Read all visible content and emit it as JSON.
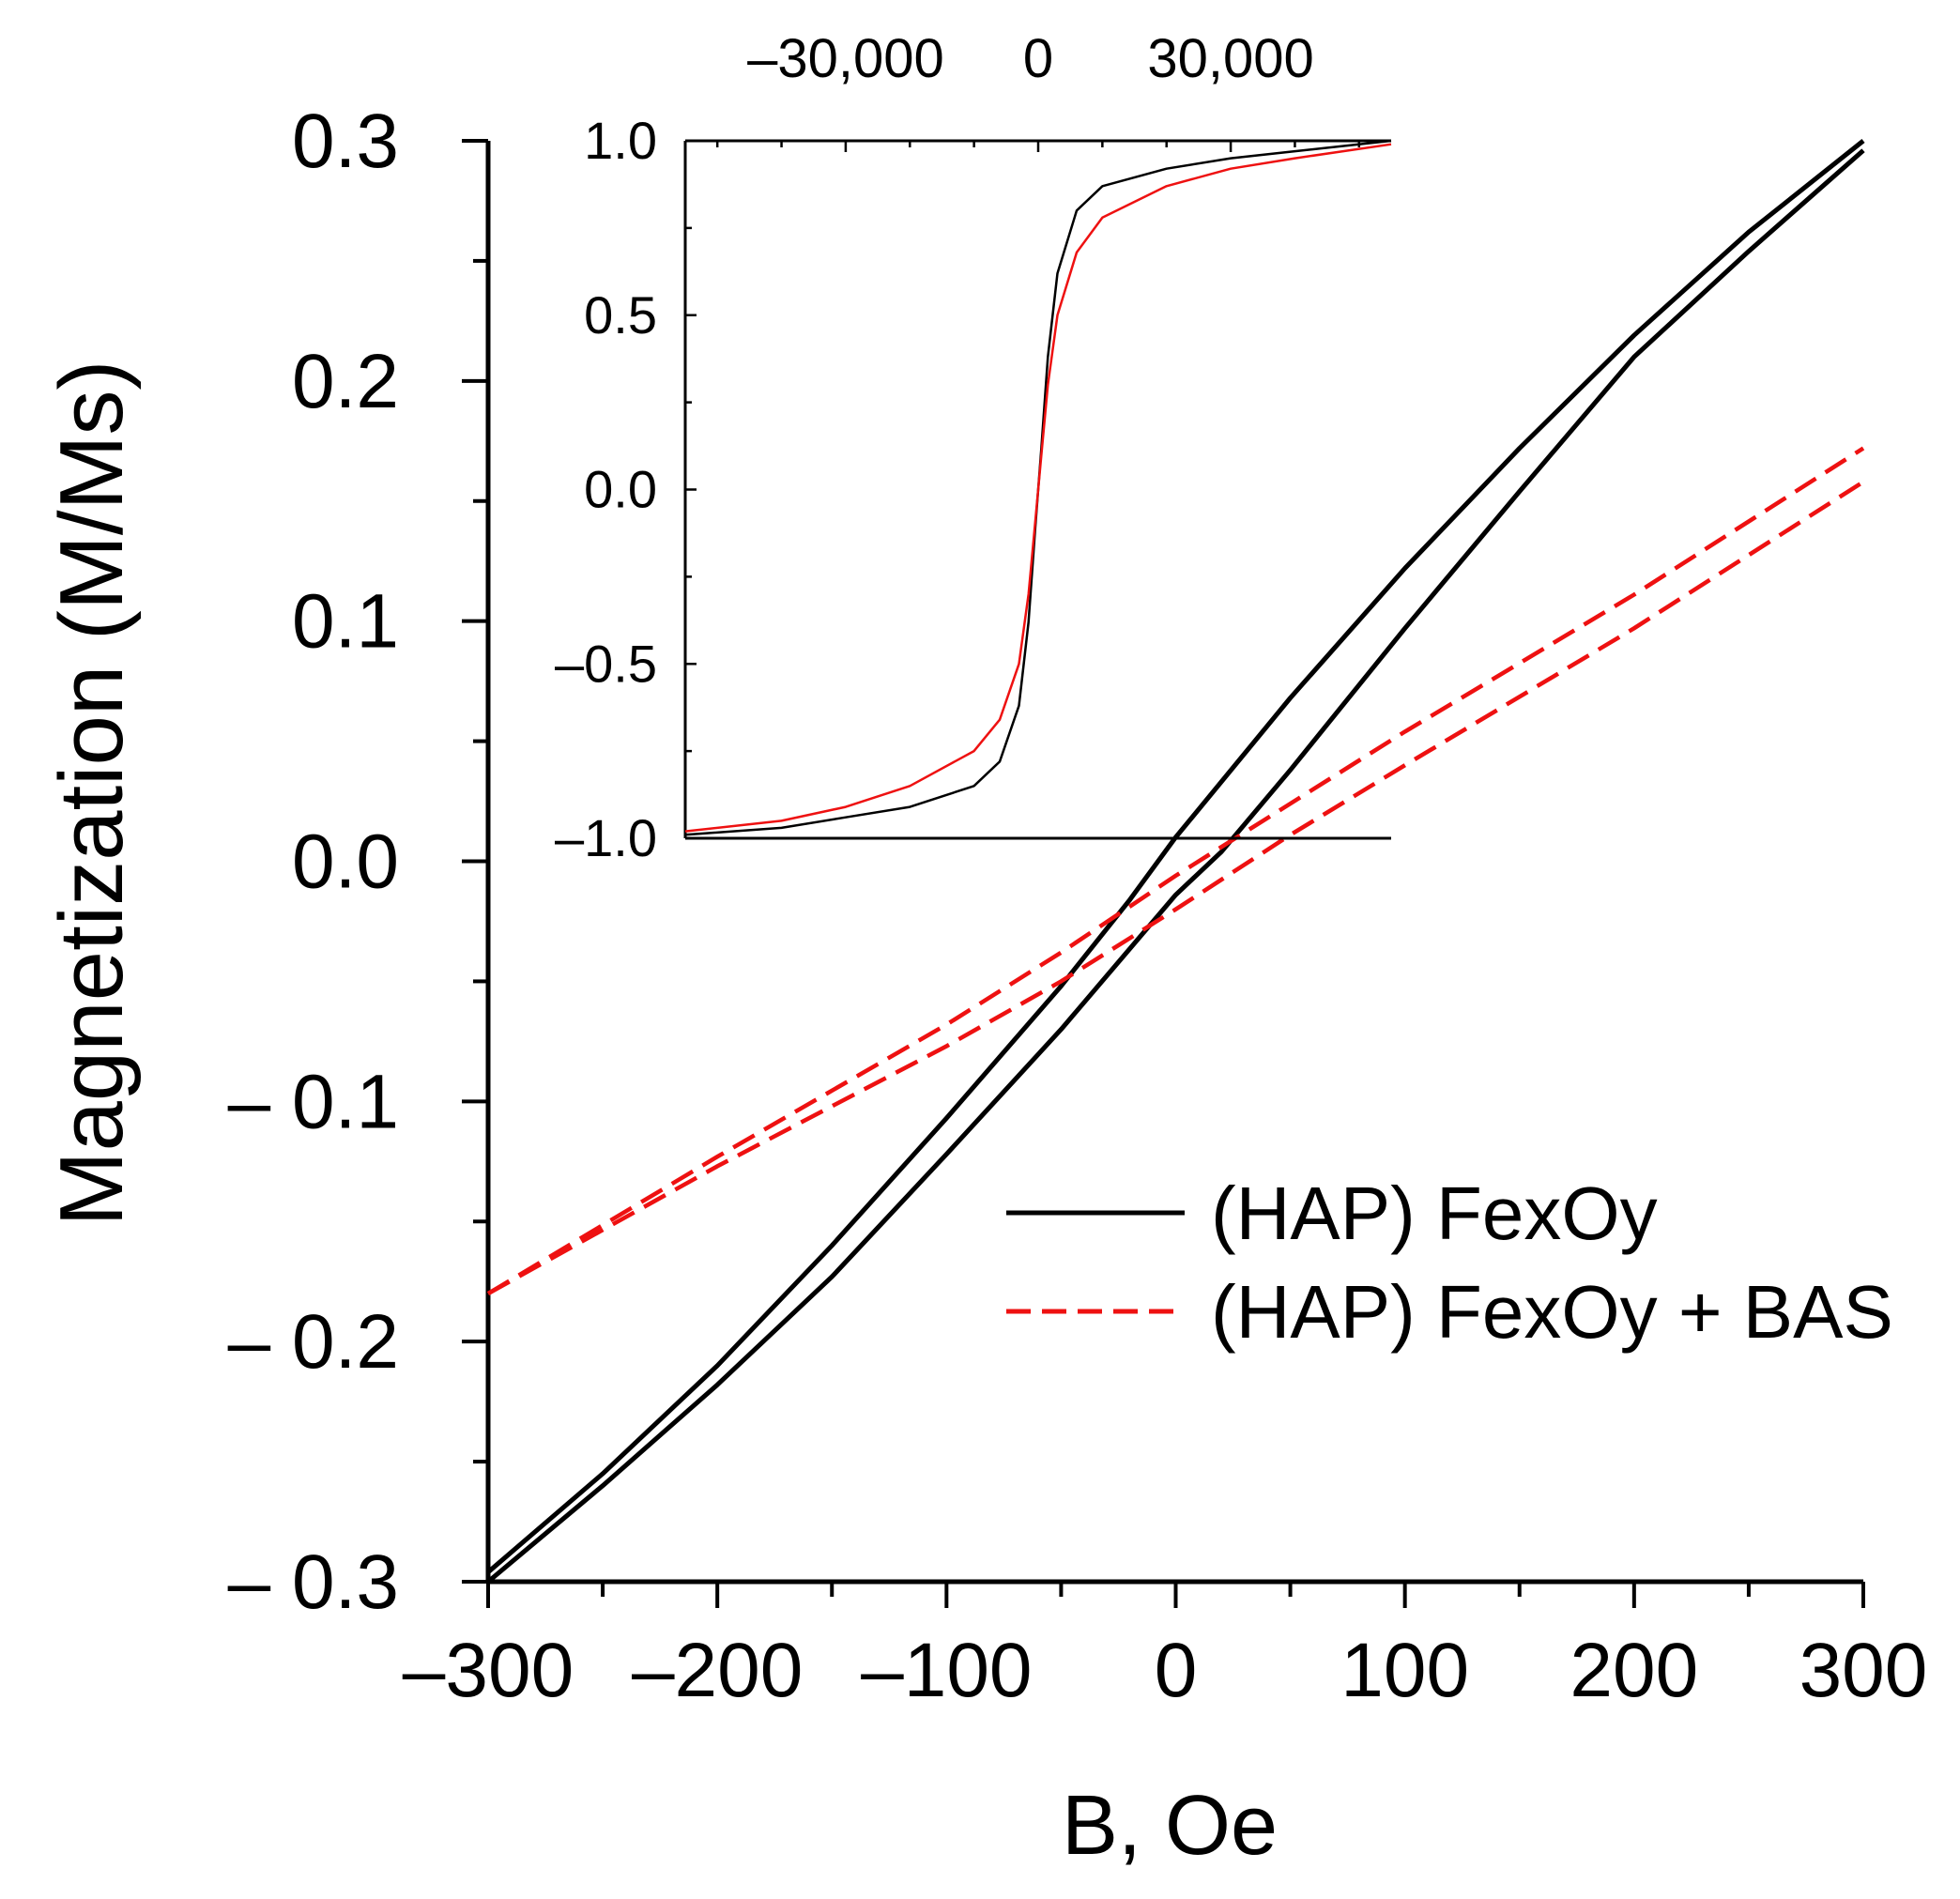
{
  "colors": {
    "axis": "#000000",
    "series_black": "#000000",
    "series_red": "#ee1111",
    "background": "#ffffff"
  },
  "chart_data": [
    {
      "id": "main",
      "type": "line",
      "title": "",
      "xlabel": "B, Oe",
      "ylabel": "Magnetization (M/Ms)",
      "xlim": [
        -300,
        300
      ],
      "ylim": [
        -0.3,
        0.3
      ],
      "xticks": [
        -300,
        -200,
        -100,
        0,
        100,
        200,
        300
      ],
      "xtick_labels": [
        "–300",
        "–200",
        "–100",
        "0",
        "100",
        "200",
        "300"
      ],
      "yticks": [
        -0.3,
        -0.2,
        -0.1,
        0.0,
        0.1,
        0.2,
        0.3
      ],
      "ytick_labels": [
        "– 0.3",
        "– 0.2",
        "– 0.1",
        "0.0",
        "0.1",
        "0.2",
        "0.3"
      ],
      "grid": false,
      "legend_position": "lower-right",
      "series": [
        {
          "name": "(HAP) FexOy",
          "branch": "descending",
          "style": "solid",
          "color": "#000000",
          "x": [
            -300,
            -250,
            -200,
            -150,
            -100,
            -50,
            -20,
            0,
            50,
            100,
            150,
            200,
            250,
            300
          ],
          "y": [
            -0.296,
            -0.255,
            -0.21,
            -0.16,
            -0.107,
            -0.052,
            -0.016,
            0.01,
            0.068,
            0.122,
            0.172,
            0.219,
            0.262,
            0.3
          ]
        },
        {
          "name": "(HAP) FexOy",
          "branch": "ascending",
          "style": "solid",
          "color": "#000000",
          "x": [
            -300,
            -250,
            -200,
            -150,
            -100,
            -50,
            0,
            20,
            50,
            100,
            150,
            200,
            250,
            300
          ],
          "y": [
            -0.3,
            -0.26,
            -0.218,
            -0.173,
            -0.122,
            -0.07,
            -0.014,
            0.004,
            0.038,
            0.097,
            0.154,
            0.21,
            0.254,
            0.296
          ]
        },
        {
          "name": "(HAP) FexOy + BAS",
          "branch": "descending",
          "style": "dashed",
          "color": "#ee1111",
          "x": [
            -300,
            -200,
            -100,
            -50,
            0,
            50,
            100,
            200,
            300
          ],
          "y": [
            -0.18,
            -0.123,
            -0.068,
            -0.038,
            -0.006,
            0.024,
            0.054,
            0.111,
            0.172
          ]
        },
        {
          "name": "(HAP) FexOy + BAS",
          "branch": "ascending",
          "style": "dashed",
          "color": "#ee1111",
          "x": [
            -300,
            -200,
            -100,
            -50,
            0,
            50,
            100,
            200,
            300
          ],
          "y": [
            -0.18,
            -0.127,
            -0.077,
            -0.05,
            -0.02,
            0.011,
            0.04,
            0.097,
            0.158
          ]
        }
      ],
      "legend": [
        {
          "label": "(HAP) FexOy",
          "style": "solid",
          "color": "#000000"
        },
        {
          "label": "(HAP) FexOy + BAS",
          "style": "dashed",
          "color": "#ee1111"
        }
      ]
    },
    {
      "id": "inset",
      "type": "line",
      "title": "",
      "xlabel": "",
      "ylabel": "",
      "xlim": [
        -55000,
        55000
      ],
      "ylim": [
        -1.0,
        1.0
      ],
      "xticks": [
        -30000,
        0,
        30000
      ],
      "xtick_labels": [
        "–30,000",
        "0",
        "30,000"
      ],
      "xaxis_position": "top",
      "yticks": [
        -1.0,
        -0.5,
        0.0,
        0.5,
        1.0
      ],
      "ytick_labels": [
        "–1.0",
        "–0.5",
        "0.0",
        "0.5",
        "1.0"
      ],
      "grid": false,
      "series": [
        {
          "name": "(HAP) FexOy",
          "style": "solid",
          "color": "#000000",
          "x": [
            -55000,
            -40000,
            -30000,
            -20000,
            -10000,
            -6000,
            -3000,
            -1500,
            -500,
            0,
            500,
            1500,
            3000,
            6000,
            10000,
            20000,
            30000,
            40000,
            55000
          ],
          "y": [
            -0.99,
            -0.97,
            -0.94,
            -0.91,
            -0.85,
            -0.78,
            -0.62,
            -0.38,
            -0.12,
            0.0,
            0.12,
            0.38,
            0.62,
            0.8,
            0.87,
            0.92,
            0.95,
            0.97,
            1.0
          ]
        },
        {
          "name": "(HAP) FexOy + BAS",
          "style": "solid",
          "color": "#ee1111",
          "x": [
            -55000,
            -40000,
            -30000,
            -20000,
            -10000,
            -6000,
            -3000,
            -1500,
            -500,
            0,
            500,
            1500,
            3000,
            6000,
            10000,
            20000,
            30000,
            40000,
            55000
          ],
          "y": [
            -0.98,
            -0.95,
            -0.91,
            -0.85,
            -0.75,
            -0.66,
            -0.5,
            -0.3,
            -0.1,
            0.0,
            0.1,
            0.3,
            0.5,
            0.68,
            0.78,
            0.87,
            0.92,
            0.95,
            0.99
          ]
        }
      ]
    }
  ]
}
